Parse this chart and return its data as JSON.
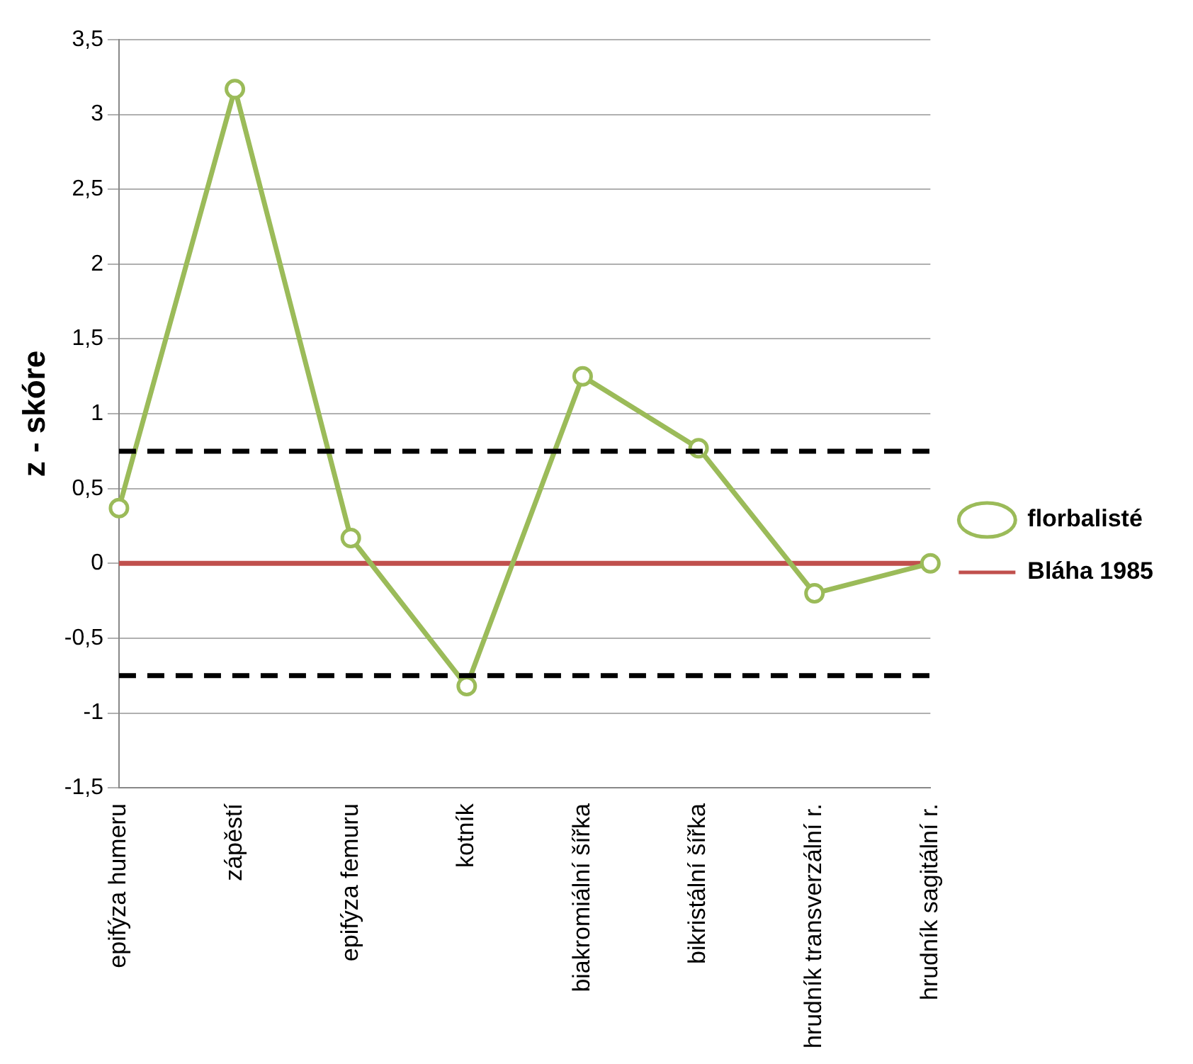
{
  "chart_data": {
    "type": "line",
    "ylabel": "z - skóre",
    "categories": [
      "epifýza humeru",
      "zápěstí",
      "epifýza femuru",
      "kotník",
      "biakromiální šířka",
      "bikristální šířka",
      "hrudník transverzální r.",
      "hrudník sagitální r."
    ],
    "series": [
      {
        "name": "florbalisté",
        "color": "#9bbb59",
        "marker": "circle",
        "values": [
          0.37,
          3.17,
          0.17,
          -0.82,
          1.25,
          0.77,
          -0.2,
          0.0
        ]
      },
      {
        "name": "Bláha 1985",
        "color": "#c0504d",
        "marker": "none",
        "values": [
          0,
          0,
          0,
          0,
          0,
          0,
          0,
          0
        ]
      }
    ],
    "ylim": [
      -1.5,
      3.5
    ],
    "yticks": [
      {
        "value": -1.5,
        "label": "-1,5"
      },
      -1,
      {
        "value": -0.5,
        "label": "-0,5"
      },
      0,
      {
        "value": 0.5,
        "label": "0,5"
      },
      1,
      {
        "value": 1.5,
        "label": "1,5"
      },
      2,
      {
        "value": 2.5,
        "label": "2,5"
      },
      3,
      {
        "value": 3.5,
        "label": "3,5"
      }
    ],
    "ref_lines": [
      {
        "axis": "y",
        "value": 0.75,
        "color": "#000000",
        "line_style": "dashed"
      },
      {
        "axis": "y",
        "value": -0.75,
        "color": "#000000",
        "line_style": "dashed"
      }
    ],
    "grid": "y",
    "legend": "right"
  }
}
